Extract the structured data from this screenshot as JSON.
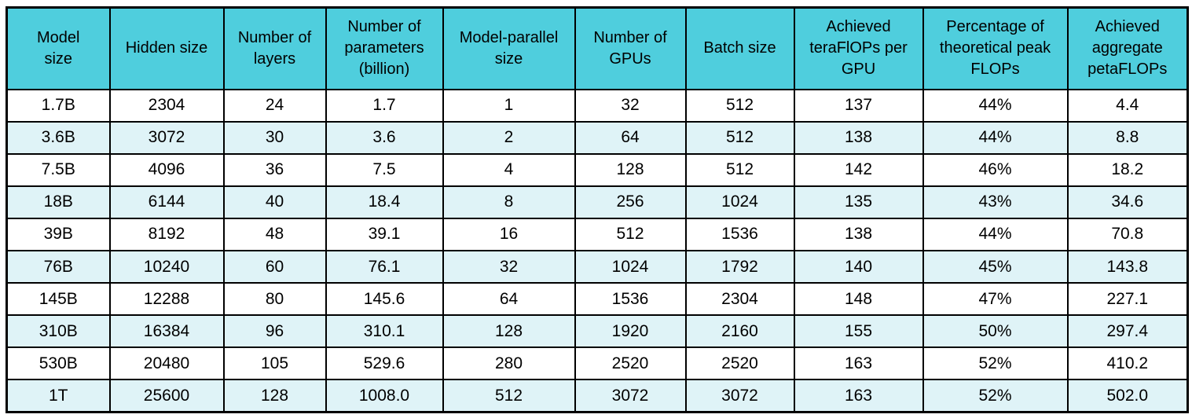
{
  "colors": {
    "header_bg": "#4FCEDD",
    "row_bg": "#FFFFFF",
    "row_alt_bg": "#DFF3F7",
    "border": "#000000",
    "text": "#000000"
  },
  "chart_data": {
    "type": "table",
    "columns": [
      "Model size",
      "Hidden size",
      "Number of layers",
      "Number of parameters (billion)",
      "Model-parallel size",
      "Number of GPUs",
      "Batch size",
      "Achieved teraFlOPs per GPU",
      "Percentage of theoretical peak FLOPs",
      "Achieved aggregate petaFLOPs"
    ],
    "rows": [
      [
        "1.7B",
        "2304",
        "24",
        "1.7",
        "1",
        "32",
        "512",
        "137",
        "44%",
        "4.4"
      ],
      [
        "3.6B",
        "3072",
        "30",
        "3.6",
        "2",
        "64",
        "512",
        "138",
        "44%",
        "8.8"
      ],
      [
        "7.5B",
        "4096",
        "36",
        "7.5",
        "4",
        "128",
        "512",
        "142",
        "46%",
        "18.2"
      ],
      [
        "18B",
        "6144",
        "40",
        "18.4",
        "8",
        "256",
        "1024",
        "135",
        "43%",
        "34.6"
      ],
      [
        "39B",
        "8192",
        "48",
        "39.1",
        "16",
        "512",
        "1536",
        "138",
        "44%",
        "70.8"
      ],
      [
        "76B",
        "10240",
        "60",
        "76.1",
        "32",
        "1024",
        "1792",
        "140",
        "45%",
        "143.8"
      ],
      [
        "145B",
        "12288",
        "80",
        "145.6",
        "64",
        "1536",
        "2304",
        "148",
        "47%",
        "227.1"
      ],
      [
        "310B",
        "16384",
        "96",
        "310.1",
        "128",
        "1920",
        "2160",
        "155",
        "50%",
        "297.4"
      ],
      [
        "530B",
        "20480",
        "105",
        "529.6",
        "280",
        "2520",
        "2520",
        "163",
        "52%",
        "410.2"
      ],
      [
        "1T",
        "25600",
        "128",
        "1008.0",
        "512",
        "3072",
        "3072",
        "163",
        "52%",
        "502.0"
      ]
    ]
  }
}
